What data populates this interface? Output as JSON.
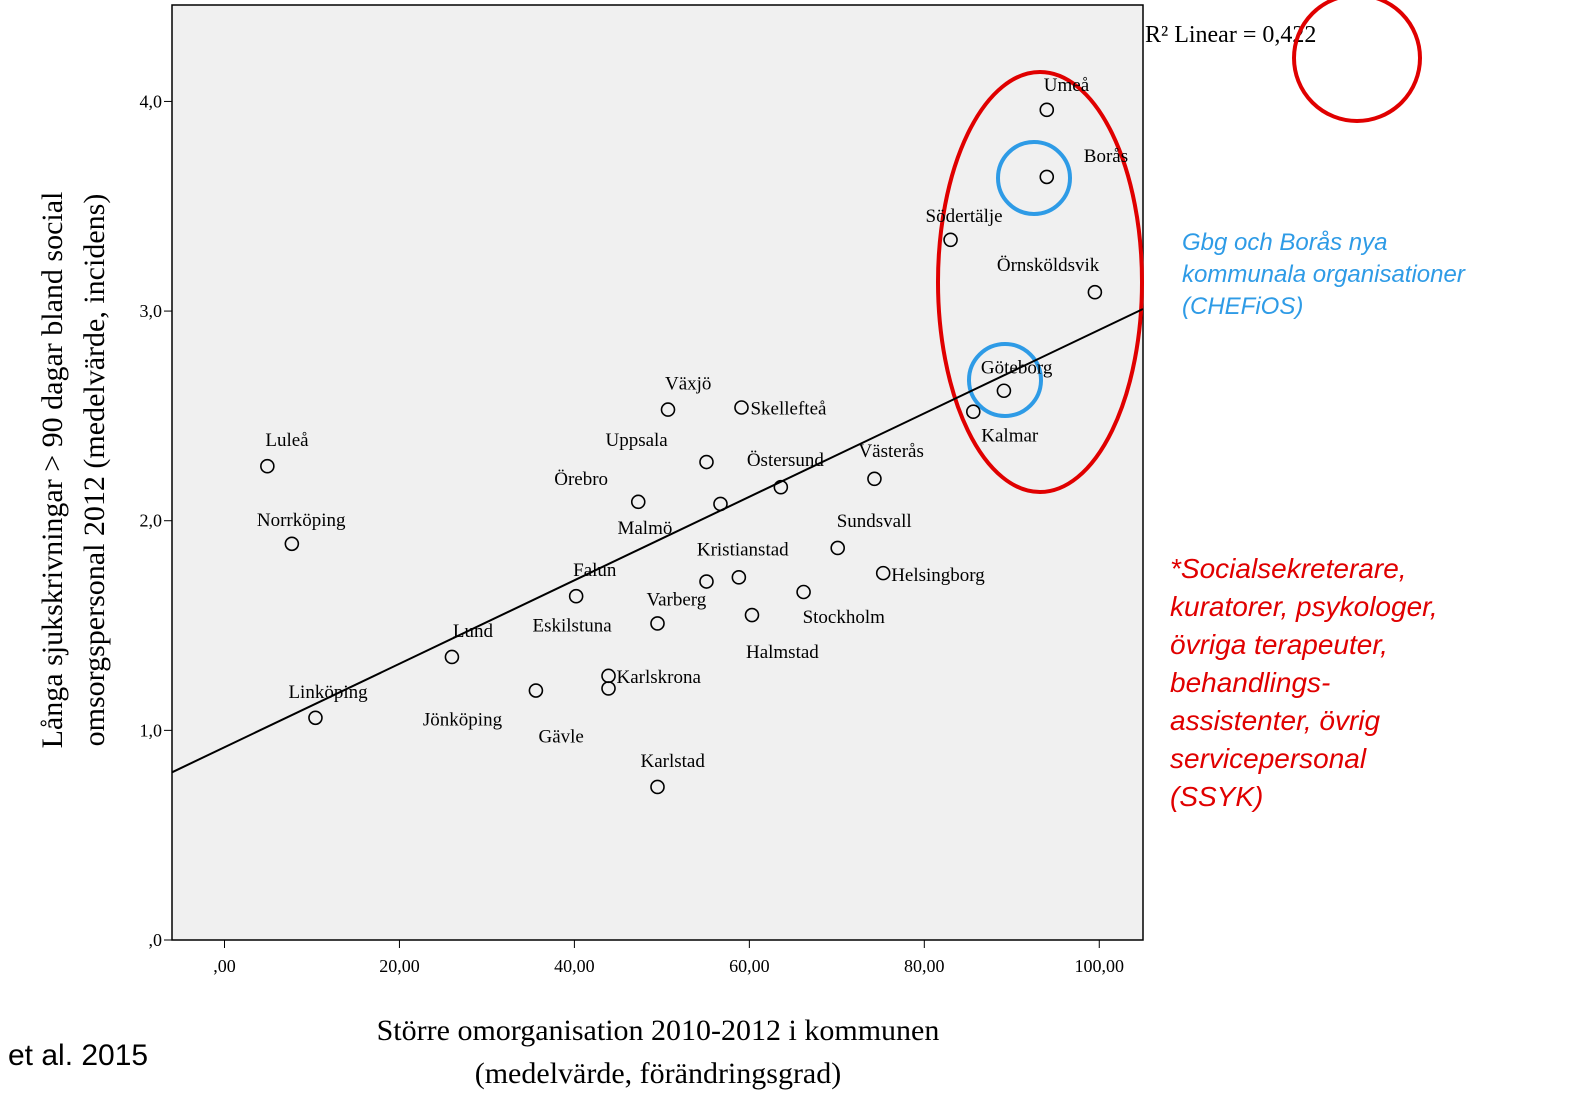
{
  "chart_data": {
    "type": "scatter",
    "x_label": [
      "Större omorganisation 2010-2012 i kommunen",
      "(medelvärde, förändringsgrad)"
    ],
    "y_label": [
      "Långa sjukskrivningar > 90 dagar bland social",
      "omsorgspersonal 2012 (medelvärde, incidens)"
    ],
    "r2_annotation": "R² Linear = 0,422",
    "labels": [
      "Umeå",
      "Borås",
      "Södertälje",
      "Örnsköldsvik",
      "Göteborg",
      "Kalmar",
      "Växjö",
      "Skellefteå",
      "Uppsala",
      "Luleå",
      "Östersund",
      "Västerås",
      "Örebro",
      "Malmö",
      "Norrköping",
      "Sundsvall",
      "Kristianstad",
      "Varberg",
      "Helsingborg",
      "Falun",
      "Stockholm",
      "Halmstad",
      "Eskilstuna",
      "Lund",
      "Karlskrona",
      "Gävle",
      "Jönköping",
      "Linköping",
      "Karlstad"
    ],
    "x": [
      94.0,
      94.0,
      83.0,
      99.5,
      89.1,
      85.6,
      50.7,
      59.1,
      55.1,
      4.9,
      63.6,
      74.3,
      47.3,
      56.7,
      7.7,
      70.1,
      58.8,
      55.1,
      75.3,
      40.2,
      66.2,
      60.3,
      49.5,
      26.0,
      43.9,
      43.9,
      35.6,
      10.4,
      49.5
    ],
    "values": [
      3.96,
      3.64,
      3.34,
      3.09,
      2.62,
      2.52,
      2.53,
      2.54,
      2.28,
      2.26,
      2.16,
      2.2,
      2.09,
      2.08,
      1.89,
      1.87,
      1.73,
      1.71,
      1.75,
      1.64,
      1.66,
      1.55,
      1.51,
      1.35,
      1.26,
      1.2,
      1.19,
      1.06,
      0.73
    ],
    "fit_line": {
      "x": [
        -6,
        105
      ],
      "y": [
        0.8,
        3.01
      ]
    },
    "xlim": [
      -6,
      105
    ],
    "ylim": [
      0,
      4.46
    ],
    "xticks": [
      {
        "value": 0,
        "label": ",00"
      },
      {
        "value": 20,
        "label": "20,00"
      },
      {
        "value": 40,
        "label": "40,00"
      },
      {
        "value": 60,
        "label": "60,00"
      },
      {
        "value": 80,
        "label": "80,00"
      },
      {
        "value": 100,
        "label": "100,00"
      }
    ],
    "yticks": [
      {
        "value": 0,
        "label": ",0"
      },
      {
        "value": 1,
        "label": "1,0"
      },
      {
        "value": 2,
        "label": "2,0"
      },
      {
        "value": 3,
        "label": "3,0"
      },
      {
        "value": 4,
        "label": "4,0"
      }
    ]
  },
  "notes": {
    "blue": [
      "Gbg och Borås nya",
      "kommunala organisationer",
      "(CHEFiOS)"
    ],
    "red": [
      "*Socialsekreterare,",
      "kuratorer, psykologer,",
      "övriga terapeuter,",
      "behandlings-",
      "assistenter, övrig",
      "servicepersonal",
      "(SSYK)"
    ],
    "source": "et al. 2015"
  }
}
